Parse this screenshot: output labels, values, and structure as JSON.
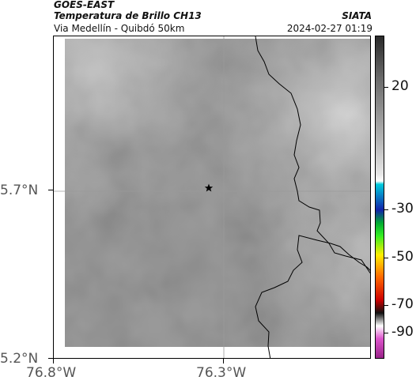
{
  "header": {
    "satellite": "GOES-EAST",
    "product": "Temperatura de Brillo CH13",
    "region": "Via Medellín - Quibdó 50km",
    "organization": "SIATA",
    "timestamp": "2024-02-27 01:19"
  },
  "map": {
    "lat_labels": [
      "5.7°N",
      "5.2°N"
    ],
    "lon_labels": [
      "76.8°W",
      "76.3°W"
    ],
    "marker_icon": "star-icon",
    "border_color": "#000000",
    "gridline_color": "#9a9a9a"
  },
  "colorbar": {
    "ticks": [
      "20",
      "-30",
      "-50",
      "-70",
      "-90"
    ],
    "stops": [
      "#2a2a2a",
      "#6e6e6e",
      "#b4b4b4",
      "#e8e8e8",
      "#ffffff",
      "#00ccdd",
      "#1122aa",
      "#00aa33",
      "#33ee22",
      "#ffee00",
      "#ff6600",
      "#cc0000",
      "#111111",
      "#ffffff",
      "#dd55cc",
      "#992288"
    ]
  }
}
